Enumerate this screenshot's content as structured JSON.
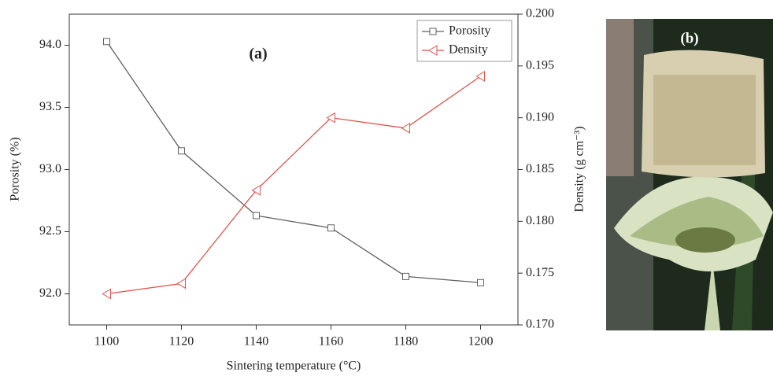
{
  "chart_data": {
    "type": "line",
    "annotations": [
      "(a)",
      "(b)"
    ],
    "xlabel": "Sintering temperature (°C)",
    "ylabel": "Porosity (%)",
    "y2label": "Density (g cm⁻³)",
    "x": [
      1100,
      1120,
      1140,
      1160,
      1180,
      1200
    ],
    "series": [
      {
        "name": "Porosity",
        "color": "#606060",
        "marker": "square",
        "values": [
          94.03,
          93.15,
          92.63,
          92.53,
          92.14,
          92.09
        ]
      },
      {
        "name": "Density",
        "color": "#e0524a",
        "marker": "triangle-left",
        "axis": "y2",
        "values": [
          0.173,
          0.174,
          0.183,
          0.19,
          0.189,
          0.194
        ]
      }
    ],
    "xlim": [
      1090,
      1210
    ],
    "xticks": [
      1100,
      1120,
      1140,
      1160,
      1180,
      1200
    ],
    "ylim": [
      91.75,
      94.25
    ],
    "yticks": [
      {
        "value": 92,
        "label": "92.0"
      },
      {
        "value": 92.5,
        "label": "92.5"
      },
      {
        "value": 93,
        "label": "93.0"
      },
      {
        "value": 93.5,
        "label": "93.5"
      },
      {
        "value": 94,
        "label": "94.0"
      }
    ],
    "y2lim": [
      0.17,
      0.2
    ],
    "y2ticks": [
      {
        "value": 0.17,
        "label": "0.170"
      },
      {
        "value": 0.175,
        "label": "0.175"
      },
      {
        "value": 0.18,
        "label": "0.180"
      },
      {
        "value": 0.185,
        "label": "0.185"
      },
      {
        "value": 0.19,
        "label": "0.190"
      },
      {
        "value": 0.195,
        "label": "0.195"
      },
      {
        "value": 0.2,
        "label": "0.200"
      }
    ],
    "legend": "upper-right"
  }
}
